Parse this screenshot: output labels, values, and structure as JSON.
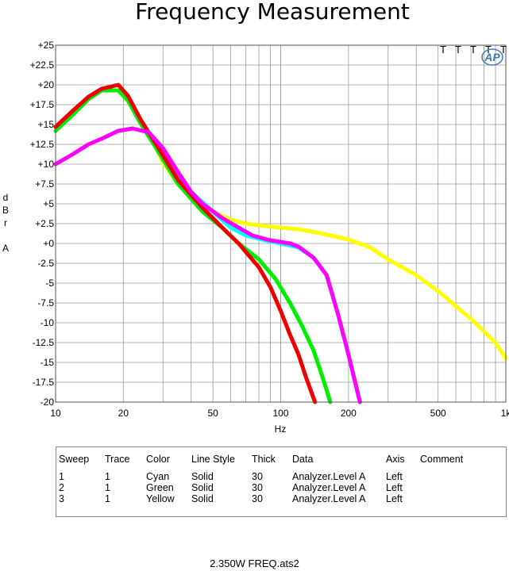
{
  "chart_data": {
    "type": "line",
    "title": "Frequency Measurement",
    "xlabel": "Hz",
    "ylabel": [
      "d",
      "B",
      "r",
      "",
      "A"
    ],
    "xscale": "log",
    "xlim": [
      10,
      1000
    ],
    "ylim": [
      -20,
      25
    ],
    "x_ticks": [
      {
        "v": 10,
        "label": "10"
      },
      {
        "v": 20,
        "label": "20"
      },
      {
        "v": 50,
        "label": "50"
      },
      {
        "v": 100,
        "label": "100"
      },
      {
        "v": 200,
        "label": "200"
      },
      {
        "v": 500,
        "label": "500"
      },
      {
        "v": 1000,
        "label": "1k"
      }
    ],
    "y_ticks": [
      {
        "v": 25,
        "label": "+25"
      },
      {
        "v": 22.5,
        "label": "+22.5"
      },
      {
        "v": 20,
        "label": "+20"
      },
      {
        "v": 17.5,
        "label": "+17.5"
      },
      {
        "v": 15,
        "label": "+15"
      },
      {
        "v": 12.5,
        "label": "+12.5"
      },
      {
        "v": 10,
        "label": "+10"
      },
      {
        "v": 7.5,
        "label": "+7.5"
      },
      {
        "v": 5,
        "label": "+5"
      },
      {
        "v": 2.5,
        "label": "+2.5"
      },
      {
        "v": 0,
        "label": "+0"
      },
      {
        "v": -2.5,
        "label": "-2.5"
      },
      {
        "v": -5,
        "label": "-5"
      },
      {
        "v": -7.5,
        "label": "-7.5"
      },
      {
        "v": -10,
        "label": "-10"
      },
      {
        "v": -12.5,
        "label": "-12.5"
      },
      {
        "v": -15,
        "label": "-15"
      },
      {
        "v": -17.5,
        "label": "-17.5"
      },
      {
        "v": -20,
        "label": "-20"
      }
    ],
    "grid": true,
    "series": [
      {
        "color": "#ffff00",
        "width": 5,
        "points": [
          [
            28,
            12
          ],
          [
            30,
            10.2
          ],
          [
            35,
            7.5
          ],
          [
            40,
            6
          ],
          [
            45,
            5
          ],
          [
            50,
            4
          ],
          [
            60,
            3
          ],
          [
            70,
            2.5
          ],
          [
            85,
            2.2
          ],
          [
            100,
            2
          ],
          [
            120,
            1.8
          ],
          [
            150,
            1.3
          ],
          [
            200,
            0.5
          ],
          [
            250,
            -0.5
          ],
          [
            300,
            -2
          ],
          [
            400,
            -4
          ],
          [
            500,
            -6
          ],
          [
            700,
            -9.5
          ],
          [
            900,
            -12.5
          ],
          [
            1000,
            -14.5
          ]
        ]
      },
      {
        "color": "#00ffff",
        "width": 5,
        "points": [
          [
            30,
            10.5
          ],
          [
            40,
            6.5
          ],
          [
            50,
            4
          ],
          [
            60,
            2
          ],
          [
            70,
            1
          ],
          [
            85,
            0.4
          ],
          [
            100,
            0
          ],
          [
            120,
            -0.5
          ],
          [
            140,
            -1.8
          ],
          [
            160,
            -4
          ],
          [
            180,
            -9
          ],
          [
            200,
            -14
          ],
          [
            225,
            -20
          ]
        ]
      },
      {
        "color": "#00ee00",
        "width": 5,
        "points": [
          [
            10,
            14.2
          ],
          [
            12,
            16.3
          ],
          [
            14,
            18.2
          ],
          [
            16,
            19.3
          ],
          [
            19,
            19.3
          ],
          [
            21,
            18
          ],
          [
            24,
            15
          ],
          [
            28,
            12
          ],
          [
            35,
            7.5
          ],
          [
            45,
            4
          ],
          [
            55,
            2
          ],
          [
            65,
            0
          ],
          [
            80,
            -2
          ],
          [
            95,
            -4.5
          ],
          [
            110,
            -7.5
          ],
          [
            125,
            -10.5
          ],
          [
            140,
            -13.5
          ],
          [
            150,
            -16
          ],
          [
            160,
            -18.5
          ],
          [
            166,
            -20
          ]
        ]
      },
      {
        "color": "#ee0000",
        "width": 5,
        "points": [
          [
            10,
            14.7
          ],
          [
            12,
            16.8
          ],
          [
            14,
            18.5
          ],
          [
            16,
            19.5
          ],
          [
            19,
            20
          ],
          [
            21,
            18.6
          ],
          [
            24,
            15.5
          ],
          [
            28,
            12.5
          ],
          [
            35,
            8
          ],
          [
            45,
            4.5
          ],
          [
            55,
            2
          ],
          [
            65,
            0
          ],
          [
            80,
            -3
          ],
          [
            90,
            -5.5
          ],
          [
            100,
            -8.5
          ],
          [
            110,
            -11.5
          ],
          [
            120,
            -14
          ],
          [
            130,
            -17
          ],
          [
            142,
            -20
          ]
        ]
      },
      {
        "color": "#ff00ff",
        "width": 5,
        "points": [
          [
            10,
            10
          ],
          [
            12,
            11.3
          ],
          [
            14,
            12.5
          ],
          [
            16,
            13.2
          ],
          [
            19,
            14.2
          ],
          [
            22,
            14.5
          ],
          [
            26,
            14
          ],
          [
            30,
            12
          ],
          [
            35,
            9
          ],
          [
            40,
            6.5
          ],
          [
            45,
            5
          ],
          [
            55,
            3.2
          ],
          [
            65,
            2
          ],
          [
            75,
            1
          ],
          [
            90,
            0.4
          ],
          [
            110,
            0
          ],
          [
            120,
            -0.4
          ],
          [
            140,
            -1.8
          ],
          [
            160,
            -4
          ],
          [
            180,
            -9
          ],
          [
            200,
            -14
          ],
          [
            225,
            -20
          ]
        ]
      }
    ],
    "annotations": [
      "T",
      "T",
      "T",
      "T",
      "T",
      "AP"
    ],
    "legend_table": {
      "headers": [
        "Sweep",
        "Trace",
        "Color",
        "Line Style",
        "Thick",
        "Data",
        "Axis",
        "Comment"
      ],
      "rows": [
        [
          "1",
          "1",
          "Cyan",
          "Solid",
          "30",
          "Analyzer.Level A",
          "Left",
          ""
        ],
        [
          "2",
          "1",
          "Green",
          "Solid",
          "30",
          "Analyzer.Level A",
          "Left",
          ""
        ],
        [
          "3",
          "1",
          "Yellow",
          "Solid",
          "30",
          "Analyzer.Level A",
          "Left",
          ""
        ]
      ]
    },
    "footer": "2.350W FREQ.ats2"
  }
}
